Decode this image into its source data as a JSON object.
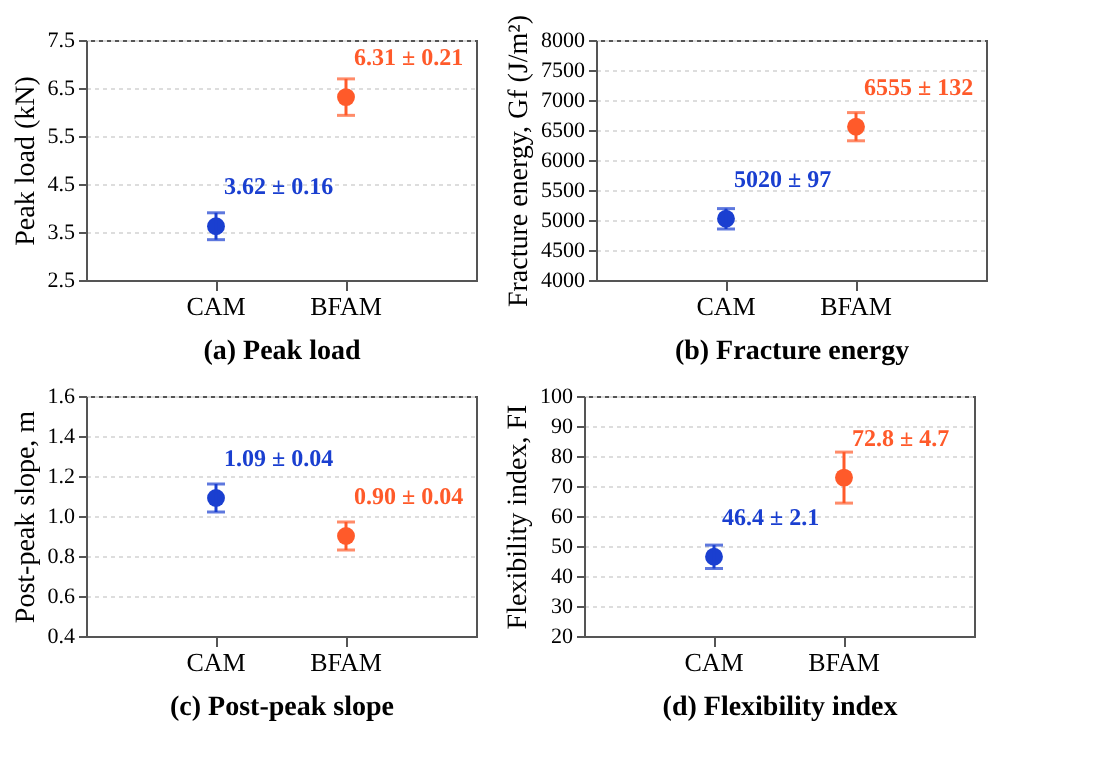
{
  "chart_data": [
    {
      "type": "scatter",
      "title": "(a) Peak load",
      "ylabel": "Peak load (kN)",
      "categories": [
        "CAM",
        "BFAM"
      ],
      "values": [
        3.62,
        6.31
      ],
      "colors": [
        "#1a3fd0",
        "#ff5a2a"
      ],
      "errors": [
        0.28,
        0.38
      ],
      "value_labels": [
        "3.62 ± 0.16",
        "6.31 ± 0.21"
      ],
      "ylim": [
        2.5,
        7.5
      ],
      "yticks": [
        2.5,
        3.5,
        4.5,
        5.5,
        6.5,
        7.5
      ],
      "grid": "y",
      "marker": "circle"
    },
    {
      "type": "scatter",
      "title": "(b) Fracture energy",
      "ylabel": "Fracture energy, Gf (J/m²)",
      "categories": [
        "CAM",
        "BFAM"
      ],
      "values": [
        5020,
        6555
      ],
      "colors": [
        "#1a3fd0",
        "#ff5a2a"
      ],
      "errors": [
        170,
        235
      ],
      "value_labels": [
        "5020 ± 97",
        "6555 ± 132"
      ],
      "ylim": [
        4000,
        8000
      ],
      "yticks": [
        4000,
        4500,
        5000,
        5500,
        6000,
        6500,
        7000,
        7500,
        8000
      ],
      "grid": "y",
      "marker": "circle"
    },
    {
      "type": "scatter",
      "title": "(c) Post-peak slope",
      "ylabel": "Post-peak slope, m",
      "categories": [
        "CAM",
        "BFAM"
      ],
      "values": [
        1.09,
        0.9
      ],
      "colors": [
        "#1a3fd0",
        "#ff5a2a"
      ],
      "errors": [
        0.07,
        0.07
      ],
      "value_labels": [
        "1.09 ± 0.04",
        "0.90 ± 0.04"
      ],
      "ylim": [
        0.4,
        1.6
      ],
      "yticks": [
        0.4,
        0.6,
        0.8,
        {
          "value": 1,
          "label": "1.0"
        },
        1.2,
        1.4,
        1.6
      ],
      "grid": "y",
      "marker": "circle"
    },
    {
      "type": "scatter",
      "title": "(d) Flexibility index",
      "ylabel": "Flexibility index, FI",
      "categories": [
        "CAM",
        "BFAM"
      ],
      "values": [
        46.4,
        72.8
      ],
      "colors": [
        "#1a3fd0",
        "#ff5a2a"
      ],
      "errors": [
        3.9,
        8.5
      ],
      "value_labels": [
        "46.4 ± 2.1",
        "72.8 ± 4.7"
      ],
      "ylim": [
        20,
        100
      ],
      "yticks": [
        20,
        30,
        40,
        50,
        60,
        70,
        80,
        90,
        100
      ],
      "grid": "y",
      "marker": "circle"
    }
  ]
}
